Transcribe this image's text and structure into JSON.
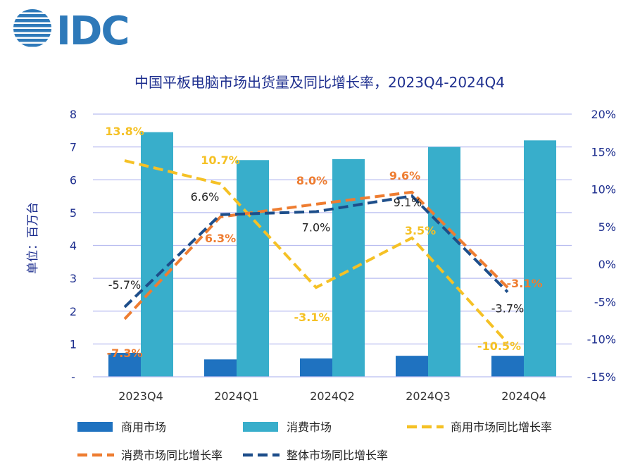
{
  "logo_text": "IDC",
  "chart_data": {
    "type": "bar",
    "title": "中国平板电脑市场出货量及同比增长率，2023Q4-2024Q4",
    "ylabel": "单位：百万台",
    "categories": [
      "2023Q4",
      "2024Q1",
      "2024Q2",
      "2024Q3",
      "2024Q4"
    ],
    "y_left": {
      "range": [
        0,
        8
      ],
      "ticks": [
        "-",
        "1",
        "2",
        "3",
        "4",
        "5",
        "6",
        "7",
        "8"
      ]
    },
    "y_right": {
      "range": [
        -15,
        20
      ],
      "ticks": [
        "-15%",
        "-10%",
        "-5%",
        "0%",
        "5%",
        "10%",
        "15%",
        "20%"
      ]
    },
    "grid": true,
    "bar_series": [
      {
        "name": "商用市场",
        "color": "#1f72c0",
        "values": [
          0.73,
          0.53,
          0.56,
          0.64,
          0.64
        ]
      },
      {
        "name": "消费市场",
        "color": "#38aecb",
        "values": [
          7.45,
          6.6,
          6.63,
          7.0,
          7.2
        ]
      }
    ],
    "line_series": [
      {
        "name": "商用市场同比增长率",
        "color": "#f5c125",
        "values": [
          13.8,
          10.7,
          -3.1,
          3.5,
          -10.5
        ],
        "labels": [
          "13.8%",
          "10.7%",
          "-3.1%",
          "3.5%",
          "-10.5%"
        ]
      },
      {
        "name": "消费市场同比增长率",
        "color": "#ee7d31",
        "values": [
          -7.3,
          6.3,
          8.0,
          9.6,
          -3.1
        ],
        "labels": [
          "-7.3%",
          "6.3%",
          "8.0%",
          "9.6%",
          "-3.1%"
        ]
      },
      {
        "name": "整体市场同比增长率",
        "color": "#1d4e8a",
        "values": [
          -5.7,
          6.6,
          7.0,
          9.1,
          -3.7
        ],
        "labels": [
          "-5.7%",
          "6.6%",
          "7.0%",
          "9.1%",
          "-3.7%"
        ]
      }
    ],
    "legend_position": "bottom"
  }
}
